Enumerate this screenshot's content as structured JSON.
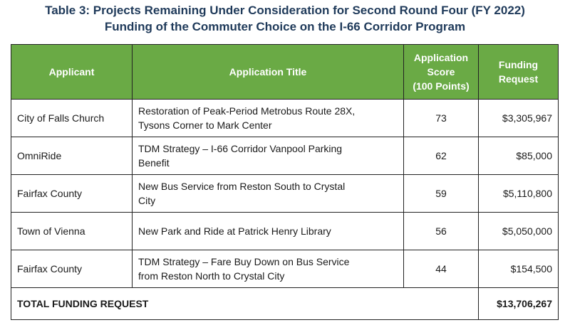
{
  "title": {
    "line1": "Table 3: Projects Remaining Under Consideration for Second Round Four (FY 2022)",
    "line2": "Funding of the Commuter Choice on the I-66 Corridor Program"
  },
  "table": {
    "headers": {
      "applicant": "Applicant",
      "title": "Application Title",
      "score_line1": "Application",
      "score_line2": "Score",
      "score_line3": "(100 Points)",
      "funding_line1": "Funding",
      "funding_line2": "Request"
    },
    "rows": [
      {
        "applicant": "City of Falls Church",
        "title_line1": "Restoration of Peak-Period Metrobus Route 28X,",
        "title_line2": "Tysons Corner to Mark Center",
        "score": "73",
        "funding": "$3,305,967"
      },
      {
        "applicant": "OmniRide",
        "title_line1": "TDM Strategy – I-66 Corridor Vanpool Parking",
        "title_line2": "Benefit",
        "score": "62",
        "funding": "$85,000"
      },
      {
        "applicant": "Fairfax County",
        "title_line1": "New Bus Service from Reston South to Crystal",
        "title_line2": "City",
        "score": "59",
        "funding": "$5,110,800"
      },
      {
        "applicant": "Town of Vienna",
        "title_line1": "New Park and Ride at Patrick Henry Library",
        "title_line2": "",
        "score": "56",
        "funding": "$5,050,000"
      },
      {
        "applicant": "Fairfax County",
        "title_line1": "TDM Strategy – Fare Buy Down on Bus Service",
        "title_line2": "from Reston North to Crystal City",
        "score": "44",
        "funding": "$154,500"
      }
    ],
    "total": {
      "label": "TOTAL FUNDING REQUEST",
      "amount": "$13,706,267"
    }
  },
  "colors": {
    "header_bg": "#6aaa45",
    "title_text": "#1f3a5a"
  }
}
